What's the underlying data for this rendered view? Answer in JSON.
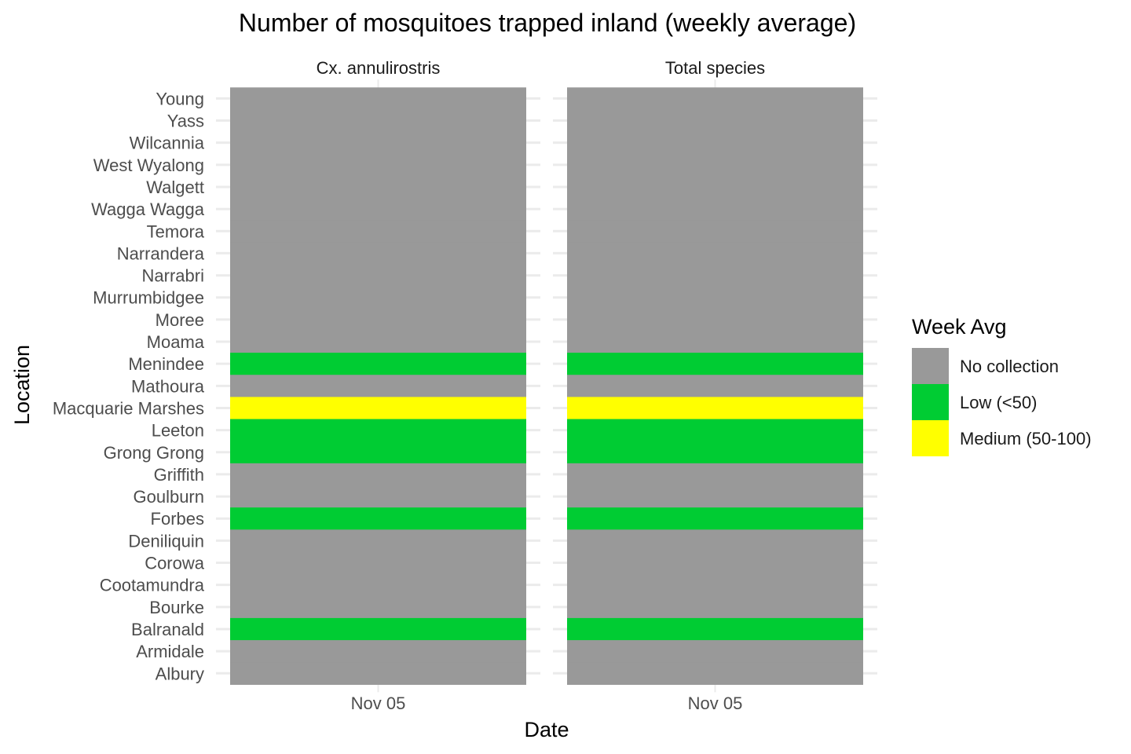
{
  "colors": {
    "No collection": "#999999",
    "Low (<50)": "#00CC33",
    "Medium (50-100)": "#FFFF00",
    "grid": "#ebebeb"
  },
  "chart_data": {
    "type": "heatmap",
    "title": "Number of mosquitoes trapped inland (weekly average)",
    "xlabel": "Date",
    "ylabel": "Location",
    "x": [
      "Nov 05"
    ],
    "locations": [
      "Young",
      "Yass",
      "Wilcannia",
      "West Wyalong",
      "Walgett",
      "Wagga Wagga",
      "Temora",
      "Narrandera",
      "Narrabri",
      "Murrumbidgee",
      "Moree",
      "Moama",
      "Menindee",
      "Mathoura",
      "Macquarie Marshes",
      "Leeton",
      "Grong Grong",
      "Griffith",
      "Goulburn",
      "Forbes",
      "Deniliquin",
      "Corowa",
      "Cootamundra",
      "Bourke",
      "Balranald",
      "Armidale",
      "Albury"
    ],
    "facets": [
      {
        "name": "Cx. annulirostris",
        "values": [
          "No collection",
          "No collection",
          "No collection",
          "No collection",
          "No collection",
          "No collection",
          "No collection",
          "No collection",
          "No collection",
          "No collection",
          "No collection",
          "No collection",
          "Low (<50)",
          "No collection",
          "Medium (50-100)",
          "Low (<50)",
          "Low (<50)",
          "No collection",
          "No collection",
          "Low (<50)",
          "No collection",
          "No collection",
          "No collection",
          "No collection",
          "Low (<50)",
          "No collection",
          "No collection"
        ]
      },
      {
        "name": "Total species",
        "values": [
          "No collection",
          "No collection",
          "No collection",
          "No collection",
          "No collection",
          "No collection",
          "No collection",
          "No collection",
          "No collection",
          "No collection",
          "No collection",
          "No collection",
          "Low (<50)",
          "No collection",
          "Medium (50-100)",
          "Low (<50)",
          "Low (<50)",
          "No collection",
          "No collection",
          "Low (<50)",
          "No collection",
          "No collection",
          "No collection",
          "No collection",
          "Low (<50)",
          "No collection",
          "No collection"
        ]
      }
    ],
    "legend": {
      "title": "Week Avg",
      "position": "right",
      "entries": [
        "No collection",
        "Low (<50)",
        "Medium (50-100)"
      ]
    },
    "grid": true
  }
}
